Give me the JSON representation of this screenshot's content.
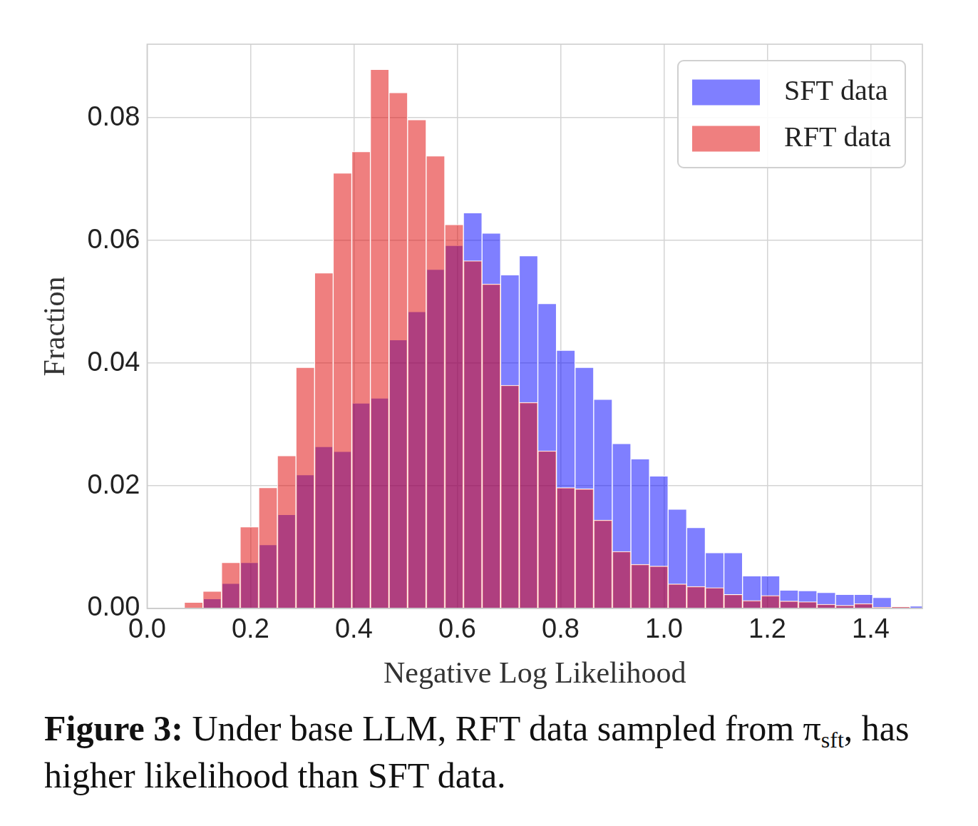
{
  "chart_data": {
    "type": "histogram",
    "title": [
      {
        "text": "Figure 3:",
        "style": "bold"
      },
      {
        "text": " Under base LLM, RFT data sampled from π"
      },
      {
        "text": "sft",
        "style": "sub"
      },
      {
        "text": ", has higher likelihood than SFT data."
      }
    ],
    "x_label": "Negative Log Likelihood",
    "y_label": "Fraction",
    "bins": [
      0.072,
      0.108,
      0.144,
      0.18,
      0.216,
      0.252,
      0.288,
      0.324,
      0.36,
      0.396,
      0.432,
      0.468,
      0.504,
      0.54,
      0.576,
      0.612,
      0.648,
      0.684,
      0.72,
      0.756,
      0.792,
      0.828,
      0.864,
      0.9,
      0.936,
      0.972,
      1.008,
      1.044,
      1.08,
      1.116,
      1.152,
      1.188,
      1.224,
      1.26,
      1.296,
      1.332,
      1.368,
      1.404,
      1.44,
      1.476,
      1.512
    ],
    "series": [
      {
        "name": "SFT data",
        "color": "#0000ff",
        "values": [
          0,
          0.0016,
          0.0041,
          0.0075,
          0.0104,
          0.0153,
          0.0218,
          0.0264,
          0.0256,
          0.0335,
          0.0343,
          0.0438,
          0.0484,
          0.0553,
          0.0592,
          0.0645,
          0.0612,
          0.0544,
          0.0575,
          0.0497,
          0.0421,
          0.0393,
          0.0341,
          0.0269,
          0.0244,
          0.0216,
          0.0162,
          0.0132,
          0.0091,
          0.0091,
          0.0053,
          0.0053,
          0.003,
          0.0029,
          0.0026,
          0.0023,
          0.0023,
          0.0018,
          0.0003,
          0.0004
        ]
      },
      {
        "name": "RFT data",
        "color": "#e00000",
        "values": [
          0.001,
          0.0028,
          0.0075,
          0.0133,
          0.0197,
          0.0249,
          0.0393,
          0.0547,
          0.071,
          0.0745,
          0.0879,
          0.0841,
          0.0797,
          0.0738,
          0.0626,
          0.0567,
          0.0529,
          0.0364,
          0.0336,
          0.0257,
          0.0197,
          0.0195,
          0.0144,
          0.0093,
          0.0072,
          0.0069,
          0.004,
          0.0036,
          0.0034,
          0.0023,
          0.0013,
          0.0021,
          0.0012,
          0.0011,
          0.0007,
          0.0005,
          0.0008,
          0.0002,
          0.0003,
          0
        ]
      }
    ],
    "xlim": [
      0,
      1.5
    ],
    "xticks": [
      {
        "value": 0,
        "label": "0.0"
      },
      {
        "value": 0.2,
        "label": "0.2"
      },
      {
        "value": 0.4,
        "label": "0.4"
      },
      {
        "value": 0.6,
        "label": "0.6"
      },
      {
        "value": 0.8,
        "label": "0.8"
      },
      {
        "value": 1.0,
        "label": "1.0"
      },
      {
        "value": 1.2,
        "label": "1.2"
      },
      {
        "value": 1.4,
        "label": "1.4"
      }
    ],
    "ylim": [
      0,
      0.092
    ],
    "yticks": [
      {
        "value": 0,
        "label": "0.00"
      },
      {
        "value": 0.02,
        "label": "0.02"
      },
      {
        "value": 0.04,
        "label": "0.04"
      },
      {
        "value": 0.06,
        "label": "0.06"
      },
      {
        "value": 0.08,
        "label": "0.08"
      }
    ],
    "grid": true,
    "legend": "upper right"
  }
}
